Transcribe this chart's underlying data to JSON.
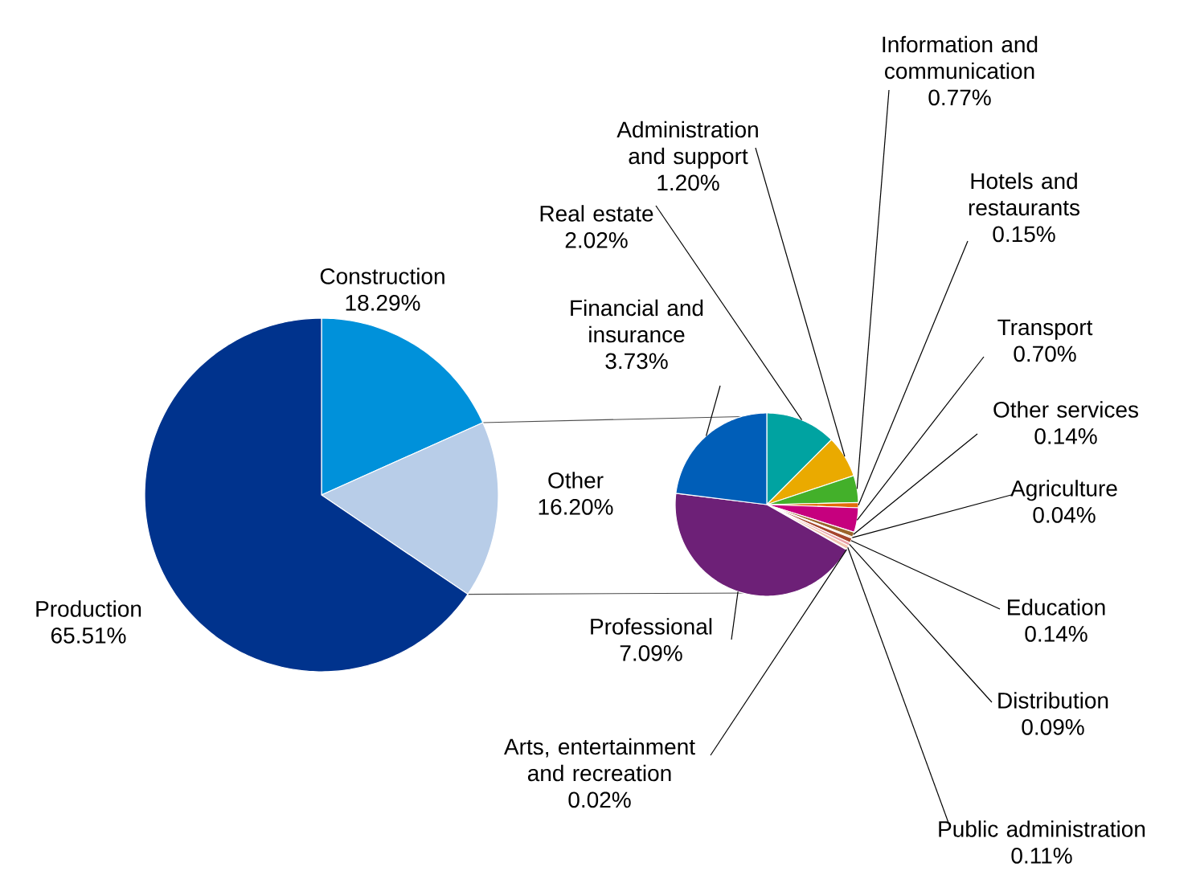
{
  "chart_data": [
    {
      "type": "pie",
      "categories": [
        "Construction",
        "Other",
        "Production"
      ],
      "values": [
        18.29,
        16.2,
        65.51
      ],
      "colors": [
        "#0091da",
        "#b8cde8",
        "#00338d"
      ],
      "value_labels": [
        "18.29%",
        "16.20%",
        "65.51%"
      ]
    },
    {
      "type": "pie",
      "categories": [
        "Real estate",
        "Administration and support",
        "Information and communication",
        "Hotels and restaurants",
        "Transport",
        "Other services",
        "Agriculture",
        "Education",
        "Distribution",
        "Public administration",
        "Arts, entertainment and recreation",
        "Professional",
        "Financial and insurance"
      ],
      "values": [
        2.02,
        1.2,
        0.77,
        0.15,
        0.7,
        0.14,
        0.04,
        0.14,
        0.09,
        0.11,
        0.02,
        7.09,
        3.73
      ],
      "colors": [
        "#00a3a1",
        "#eaaa00",
        "#43b02a",
        "#e36c0a",
        "#c6007e",
        "#9b642b",
        "#d9a06b",
        "#a5452d",
        "#e8a0a8",
        "#f2c5b0",
        "#ffd0d0",
        "#6d2077",
        "#005eb8"
      ],
      "value_labels": [
        "2.02%",
        "1.20%",
        "0.77%",
        "0.15%",
        "0.70%",
        "0.14%",
        "0.04%",
        "0.14%",
        "0.09%",
        "0.11%",
        "0.02%",
        "7.09%",
        "3.73%"
      ]
    }
  ]
}
